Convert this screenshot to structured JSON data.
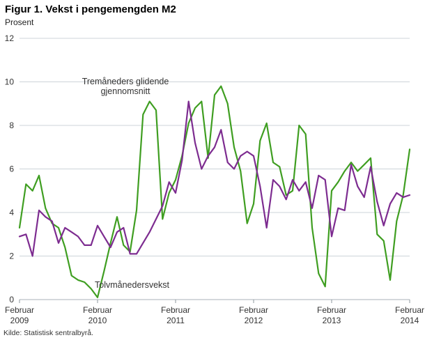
{
  "chart": {
    "title": "Figur 1. Vekst i pengemengden M2",
    "subtitle": "Prosent",
    "source": "Kilde: Statistisk sentralbyrå.",
    "annotations": [
      {
        "target_series": "Tremåneders glidende gjennomsnitt",
        "line1": "Tremåneders glidende",
        "line2": "gjennomsnitt"
      },
      {
        "target_series": "Tolvmånedersvekst",
        "line1": "Tolvmånedersvekst"
      }
    ]
  },
  "chart_data": {
    "type": "line",
    "title": "Figur 1. Vekst i pengemengden M2",
    "ylabel": "Prosent",
    "ylim": [
      0,
      12
    ],
    "yticks": [
      0,
      2,
      4,
      6,
      8,
      10,
      12
    ],
    "grid": true,
    "x_unit": "month",
    "x_ticks": [
      {
        "index": 0,
        "month": "Februar",
        "year": "2009"
      },
      {
        "index": 12,
        "month": "Februar",
        "year": "2010"
      },
      {
        "index": 24,
        "month": "Februar",
        "year": "2011"
      },
      {
        "index": 36,
        "month": "Februar",
        "year": "2012"
      },
      {
        "index": 48,
        "month": "Februar",
        "year": "2013"
      },
      {
        "index": 60,
        "month": "Februar",
        "year": "2014"
      }
    ],
    "series": [
      {
        "name": "Tremåneders glidende gjennomsnitt",
        "color": "#3f9e21",
        "values": [
          3.3,
          5.3,
          5.0,
          5.7,
          4.2,
          3.5,
          3.3,
          2.4,
          1.1,
          0.9,
          0.8,
          0.5,
          0.1,
          1.3,
          2.6,
          3.8,
          2.5,
          2.2,
          4.1,
          8.5,
          9.1,
          8.7,
          3.7,
          4.9,
          5.5,
          6.6,
          8.1,
          8.8,
          9.1,
          6.5,
          9.4,
          9.8,
          9.0,
          7.0,
          5.9,
          3.5,
          4.4,
          7.3,
          8.1,
          6.3,
          6.1,
          4.8,
          5.0,
          8.0,
          7.6,
          3.3,
          1.2,
          0.6,
          5.0,
          5.4,
          5.9,
          6.3,
          5.9,
          6.2,
          6.5,
          3.0,
          2.7,
          0.9,
          3.6,
          4.8,
          6.9
        ]
      },
      {
        "name": "Tolvmånedersvekst",
        "color": "#7d2c90",
        "values": [
          2.9,
          3.0,
          2.0,
          4.1,
          3.8,
          3.6,
          2.6,
          3.3,
          3.1,
          2.9,
          2.5,
          2.5,
          3.4,
          2.9,
          2.4,
          3.1,
          3.3,
          2.1,
          2.1,
          2.6,
          3.1,
          3.7,
          4.3,
          5.4,
          4.9,
          6.4,
          9.1,
          7.2,
          6.0,
          6.6,
          7.0,
          7.8,
          6.3,
          6.0,
          6.6,
          6.8,
          6.6,
          5.2,
          3.3,
          5.5,
          5.2,
          4.6,
          5.5,
          5.0,
          5.4,
          4.2,
          5.7,
          5.5,
          2.9,
          4.2,
          4.1,
          6.2,
          5.2,
          4.7,
          6.1,
          4.5,
          3.4,
          4.4,
          4.9,
          4.7,
          4.8
        ]
      }
    ]
  }
}
